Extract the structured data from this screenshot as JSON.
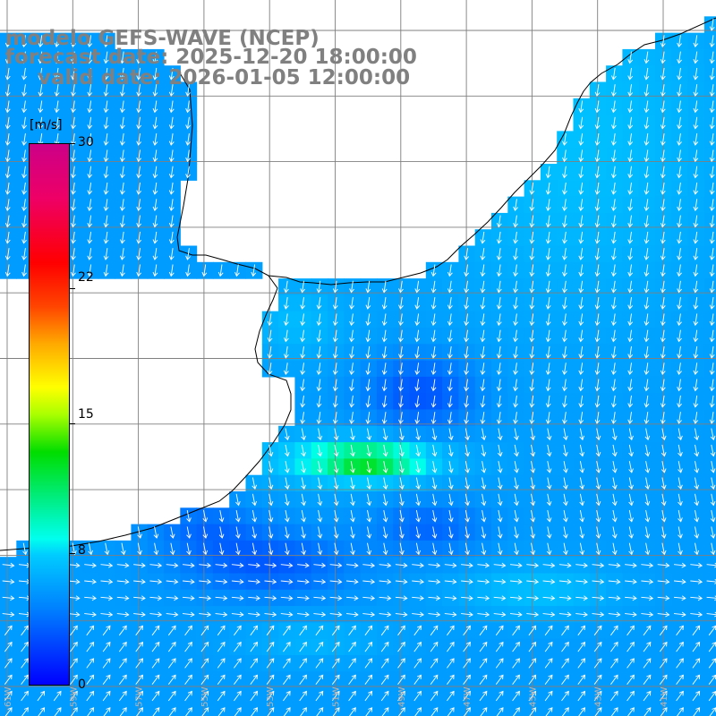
{
  "title": {
    "line1": "modelo GEFS-WAVE (NCEP)",
    "line2": "forecast date: 2025-12-20 18:00:00",
    "line3": "valid date: 2026-01-05 12:00:00"
  },
  "colorbar": {
    "unit": "[m/s]",
    "ticks": [
      "30",
      "22",
      "15",
      "8",
      "0"
    ],
    "tick_values": [
      30,
      22,
      15,
      8,
      0
    ],
    "range": [
      0,
      30
    ],
    "colors": [
      "#0000ff",
      "#0080ff",
      "#00ccff",
      "#00ffee",
      "#00dd00",
      "#ffff00",
      "#ff0000",
      "#cc0088"
    ]
  },
  "map": {
    "region": "South Atlantic - southern Brazil / Uruguay coast",
    "grid": true,
    "vectors": "white arrows indicating wind direction",
    "lon_labels": [
      "61W",
      "59W",
      "57W",
      "55W",
      "53W",
      "51W",
      "49W",
      "47W",
      "45W",
      "43W",
      "41W"
    ],
    "land_color": "#ffffff",
    "coastline_color": "#000000",
    "grid_color": "#808080"
  }
}
